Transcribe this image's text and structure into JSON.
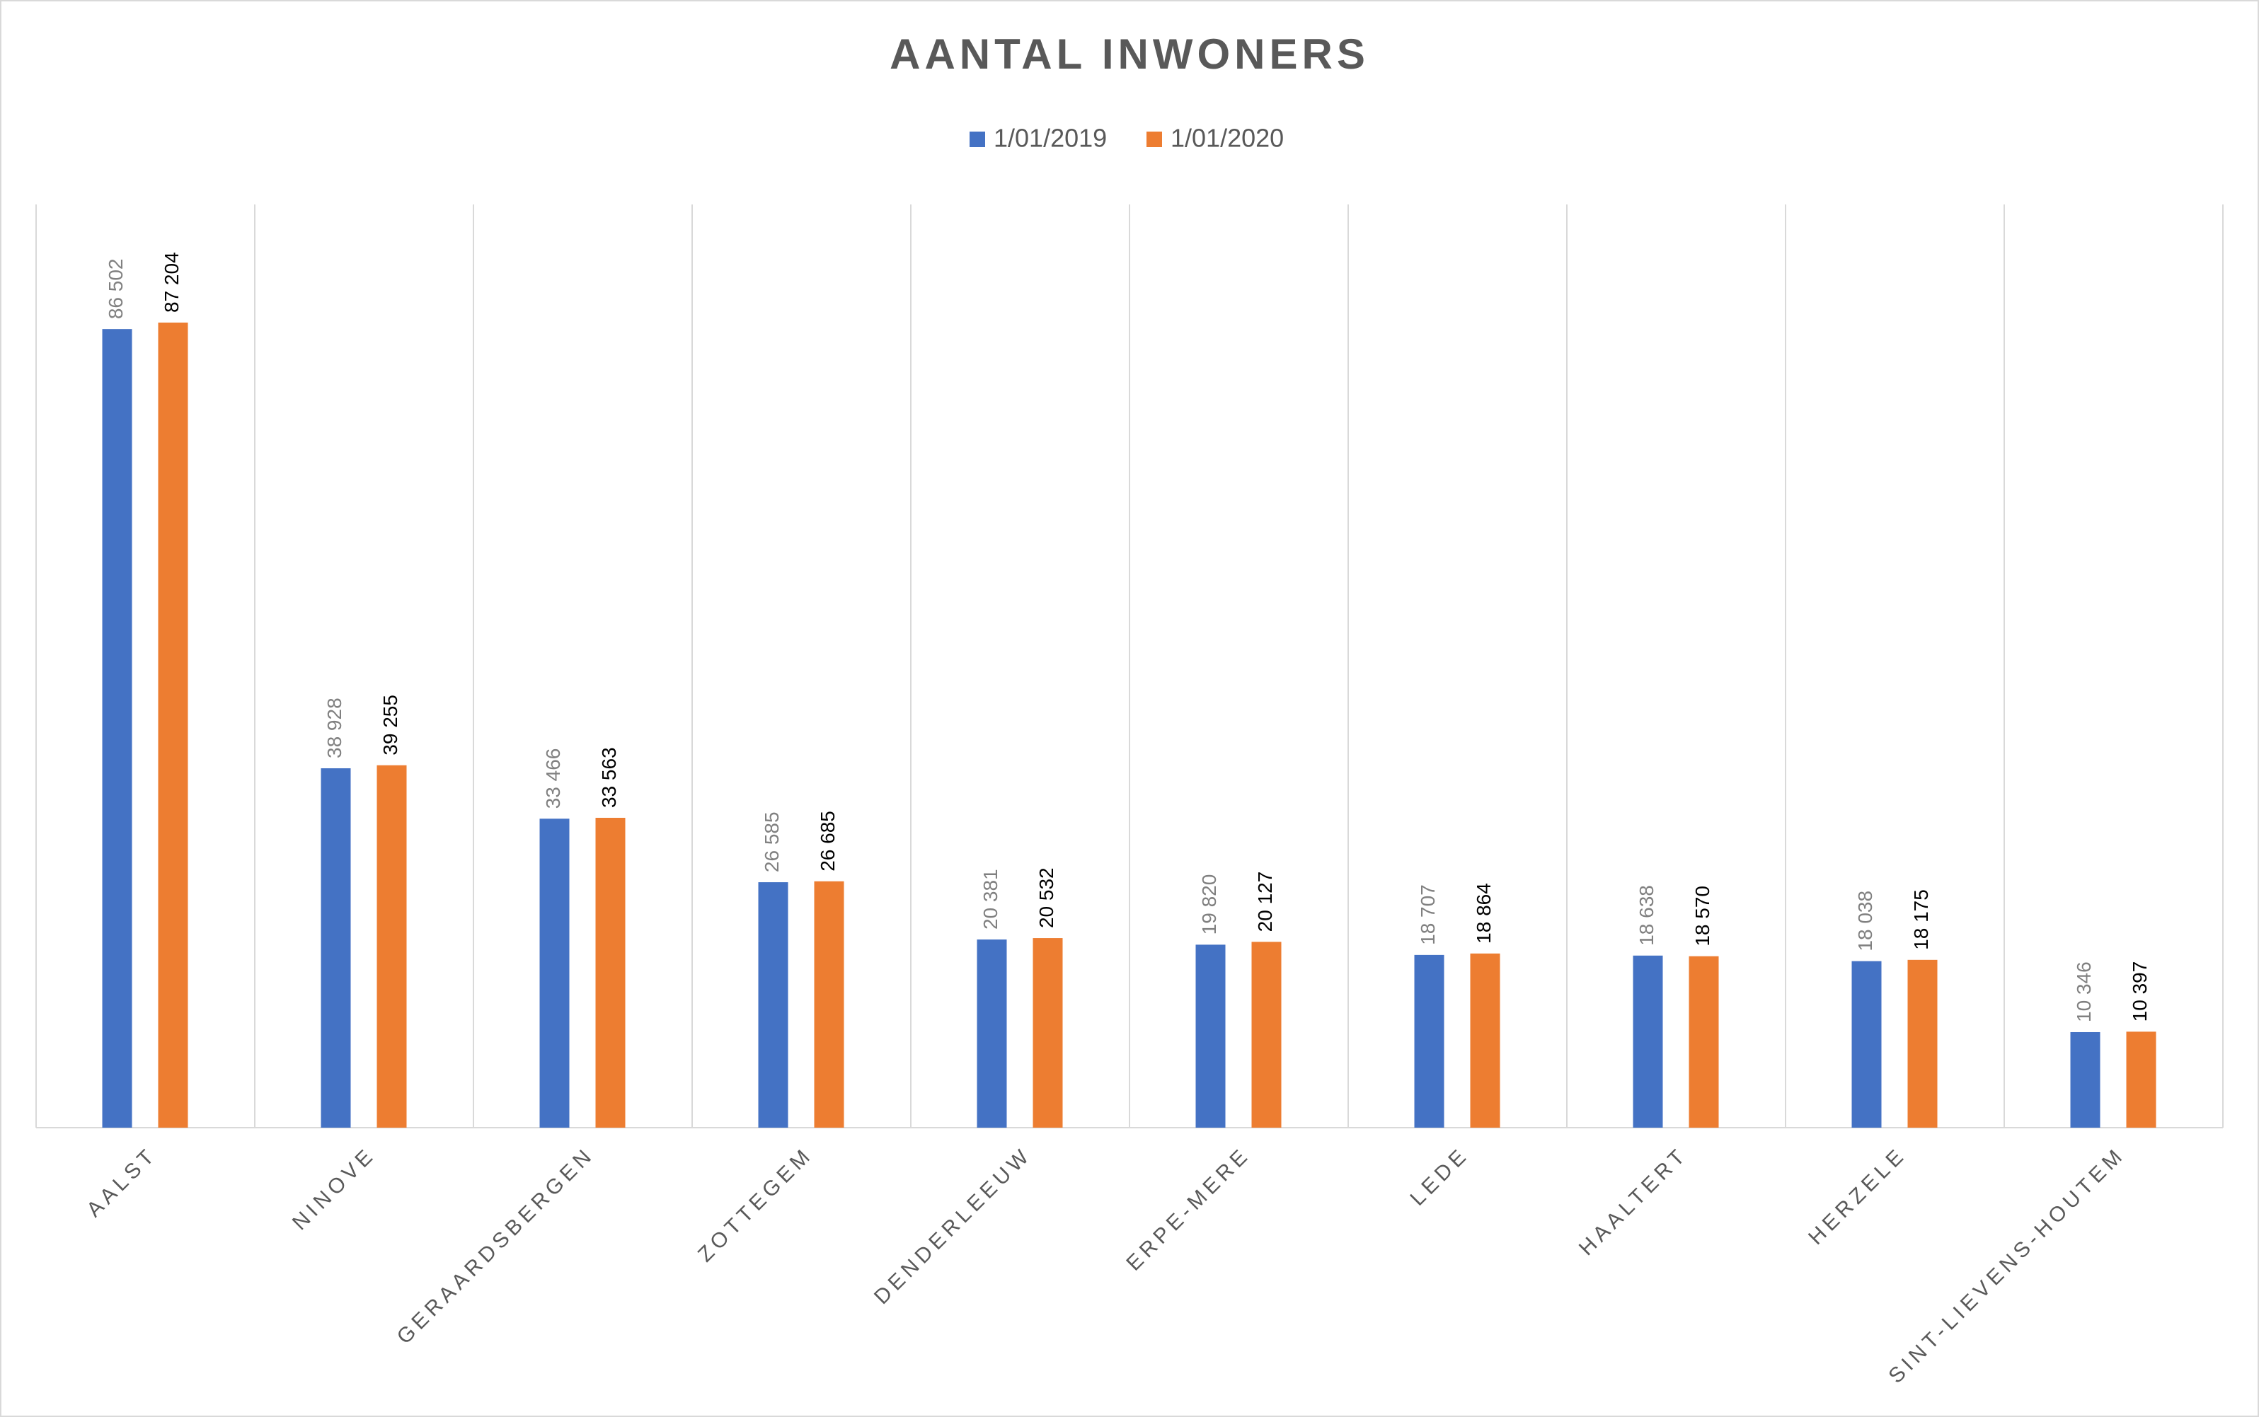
{
  "chart_data": {
    "type": "bar",
    "title": "AANTAL INWONERS",
    "categories": [
      "AALST",
      "NINOVE",
      "GERAARDSBERGEN",
      "ZOTTEGEM",
      "DENDERLEEUW",
      "ERPE-MERE",
      "LEDE",
      "HAALTERT",
      "HERZELE",
      "SINT-LIEVENS-HOUTEM"
    ],
    "series": [
      {
        "name": "1/01/2019",
        "color": "#4472c4",
        "values": [
          86502,
          38928,
          33466,
          26585,
          20381,
          19820,
          18707,
          18638,
          18038,
          10346
        ],
        "value_labels": [
          "86 502",
          "38 928",
          "33 466",
          "26 585",
          "20 381",
          "19 820",
          "18 707",
          "18 638",
          "18 038",
          "10 346"
        ]
      },
      {
        "name": "1/01/2020",
        "color": "#ed7d31",
        "values": [
          87204,
          39255,
          33563,
          26685,
          20532,
          20127,
          18864,
          18570,
          18175,
          10397
        ],
        "value_labels": [
          "87 204",
          "39 255",
          "33 563",
          "26 685",
          "20 532",
          "20 127",
          "18 864",
          "18 570",
          "18 175",
          "10 397"
        ]
      }
    ],
    "ylim": [
      0,
      100000
    ],
    "legend": "top"
  }
}
